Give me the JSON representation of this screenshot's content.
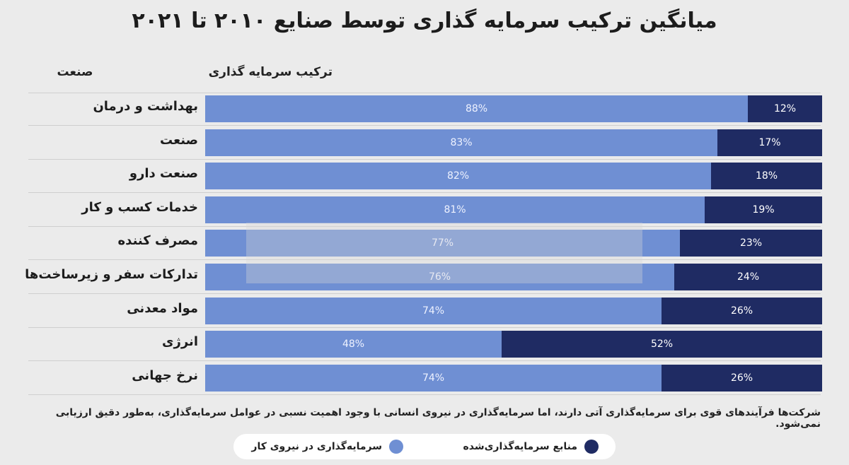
{
  "title": "میانگین ترکیب سرمایه گذاری توسط صنایع ۲۰۱۰ تا ۲۰۲۱",
  "header": {
    "industry": "صنعت",
    "composition": "ترکیب سرمایه گذاری"
  },
  "colors": {
    "labor": "#6f8fd3",
    "invested": "#1f2b63"
  },
  "chart_data": {
    "type": "bar",
    "orientation": "horizontal",
    "stacked": true,
    "xlim": [
      0,
      100
    ],
    "grid": false,
    "legend_position": "bottom",
    "categories": [
      "بهداشت و درمان",
      "صنعت",
      "صنعت دارو",
      "خدمات کسب و کار",
      "مصرف کننده",
      "تدارکات سفر و زیرساخت‌ها",
      "مواد معدنی",
      "انرژی",
      "نرخ جهانی"
    ],
    "series": [
      {
        "name": "سرمایه‌گذاری در نیروی کار",
        "values": [
          88,
          83,
          82,
          81,
          77,
          76,
          74,
          48,
          74
        ]
      },
      {
        "name": "منابع سرمایه‌گذاری‌شده",
        "values": [
          12,
          17,
          18,
          19,
          23,
          24,
          26,
          52,
          26
        ]
      }
    ],
    "value_labels": {
      "labor": [
        "88%",
        "83%",
        "82%",
        "81%",
        "77%",
        "76%",
        "74%",
        "48%",
        "74%"
      ],
      "invested": [
        "12%",
        "17%",
        "18%",
        "19%",
        "23%",
        "24%",
        "26%",
        "52%",
        "26%"
      ]
    }
  },
  "note": "شرکت‌ها فرآیندهای قوی برای سرمایه‌گذاری آتی دارند، اما سرمایه‌گذاری در نیروی انسانی با وجود اهمیت نسبی در عوامل سرمایه‌گذاری، به‌طور دقیق ارزیابی نمی‌شود.",
  "legend": {
    "labor": "سرمایه‌گذاری در نیروی کار",
    "invested": "منابع سرمایه‌گذاری‌شده"
  }
}
